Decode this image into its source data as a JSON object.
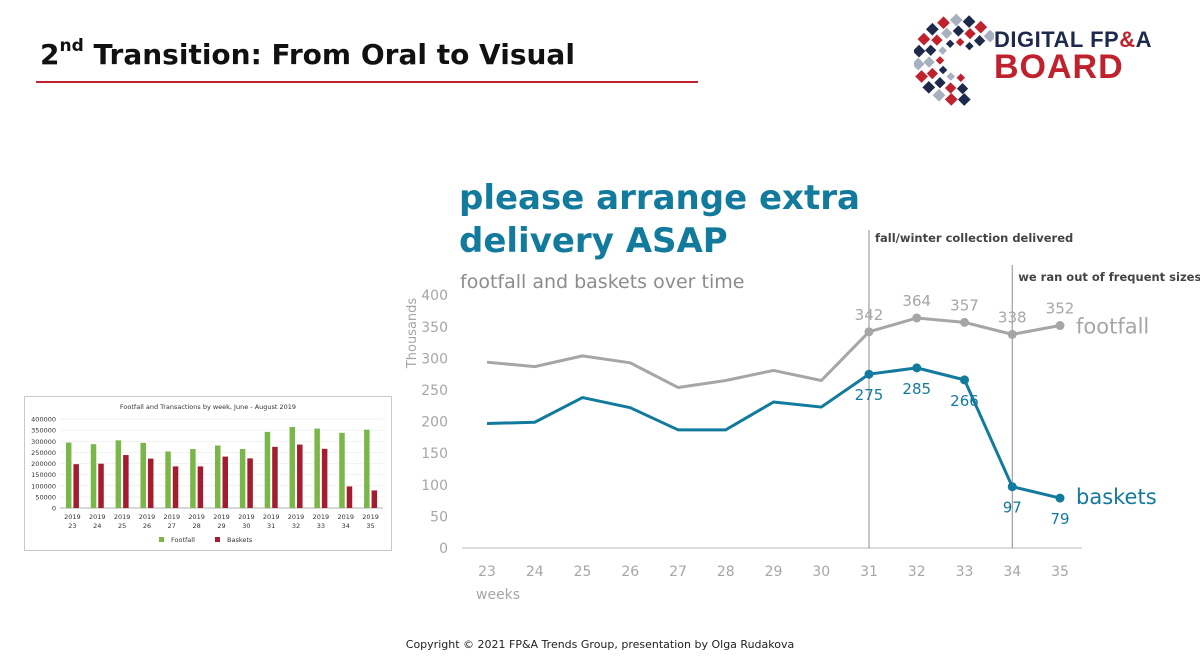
{
  "slide": {
    "title_prefix": "2",
    "title_sup": "nd",
    "title_rest": " Transition: From Oral to Visual",
    "footer": "Copyright © 2021 FP&A Trends Group, presentation by Olga Rudakova"
  },
  "logo": {
    "line1_a": "DIGITAL FP",
    "line1_amp": "&",
    "line1_b": "A",
    "line2": "BOARD",
    "colors": {
      "navy": "#1d2a4b",
      "red": "#c0222d",
      "grey": "#a7b0c0"
    }
  },
  "headline": "please arrange extra delivery ASAP",
  "subhead": "footfall and baskets over time",
  "colors": {
    "footfall": "#a6a6a6",
    "baskets": "#127a9c",
    "small_footfall": "#7ab648",
    "small_baskets": "#a51c30"
  },
  "chart_data": [
    {
      "type": "line",
      "x": [
        23,
        24,
        25,
        26,
        27,
        28,
        29,
        30,
        31,
        32,
        33,
        34,
        35
      ],
      "xlabel": "weeks",
      "ylabel": "Thousands",
      "ylim": [
        0,
        400
      ],
      "yticks": [
        0,
        50,
        100,
        150,
        200,
        250,
        300,
        350,
        400
      ],
      "grid": false,
      "series": [
        {
          "name": "footfall",
          "values": [
            294,
            287,
            304,
            293,
            254,
            265,
            281,
            265,
            342,
            364,
            357,
            338,
            352
          ],
          "labeled_points": [
            {
              "x": 31,
              "text": "342"
            },
            {
              "x": 32,
              "text": "364"
            },
            {
              "x": 33,
              "text": "357"
            },
            {
              "x": 34,
              "text": "338"
            },
            {
              "x": 35,
              "text": "352"
            }
          ]
        },
        {
          "name": "baskets",
          "values": [
            197,
            199,
            238,
            222,
            187,
            187,
            231,
            223,
            275,
            285,
            266,
            97,
            79
          ],
          "labeled_points": [
            {
              "x": 31,
              "text": "275"
            },
            {
              "x": 32,
              "text": "285"
            },
            {
              "x": 33,
              "text": "266"
            },
            {
              "x": 34,
              "text": "97"
            },
            {
              "x": 35,
              "text": "79"
            }
          ]
        }
      ],
      "annotations": [
        {
          "x": 31,
          "text": "fall/winter collection delivered"
        },
        {
          "x": 34,
          "text": "we ran out of frequent sizes"
        }
      ]
    },
    {
      "type": "bar",
      "title": "Footfall and Transactions by week, June - August 2019",
      "categories": [
        "2019 23",
        "2019 24",
        "2019 25",
        "2019 26",
        "2019 27",
        "2019 28",
        "2019 29",
        "2019 30",
        "2019 31",
        "2019 32",
        "2019 33",
        "2019 34",
        "2019 35"
      ],
      "category_year": "2019",
      "category_weeks": [
        "23",
        "24",
        "25",
        "26",
        "27",
        "28",
        "29",
        "30",
        "31",
        "32",
        "33",
        "34",
        "35"
      ],
      "ylim": [
        0,
        400000
      ],
      "yticks": [
        "0",
        "50000",
        "100000",
        "150000",
        "200000",
        "250000",
        "300000",
        "350000",
        "400000"
      ],
      "legend_position": "bottom",
      "series": [
        {
          "name": "Footfall",
          "values": [
            294000,
            287000,
            304000,
            293000,
            254000,
            265000,
            281000,
            265000,
            342000,
            364000,
            357000,
            338000,
            352000
          ]
        },
        {
          "name": "Baskets",
          "values": [
            197000,
            199000,
            238000,
            222000,
            187000,
            187000,
            231000,
            223000,
            275000,
            285000,
            266000,
            97000,
            79000
          ]
        }
      ]
    }
  ]
}
